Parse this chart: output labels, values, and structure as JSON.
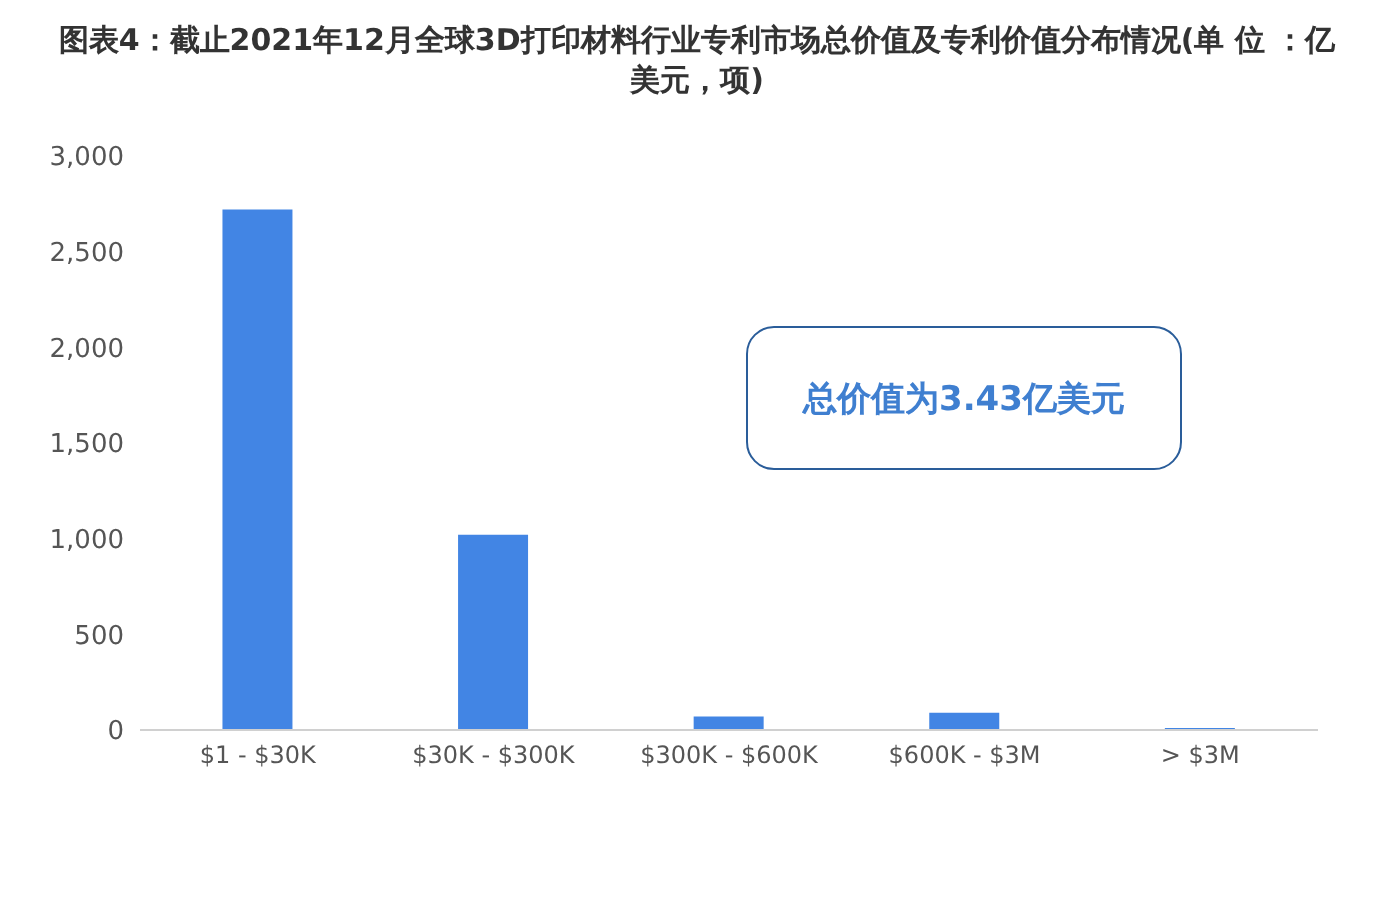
{
  "chart_data": {
    "type": "bar",
    "title": "图表4：截止2021年12月全球3D打印材料行业专利市场总价值及专利价值分布情况(单 位 ：亿美元，项)",
    "categories": [
      "$1 - $30K",
      "$30K - $300K",
      "$300K - $600K",
      "$600K - $3M",
      "> $3M"
    ],
    "values": [
      2720,
      1020,
      70,
      90,
      10
    ],
    "color": "#4285e4",
    "ylim": [
      0,
      3000
    ],
    "yticks": [
      0,
      500,
      {
        "value": 1000,
        "label": "1,000"
      },
      {
        "value": 1500,
        "label": "1,500"
      },
      {
        "value": 2000,
        "label": "2,000"
      },
      {
        "value": 2500,
        "label": "2,500"
      },
      {
        "value": 3000,
        "label": "3,000"
      }
    ],
    "grid": false,
    "annotations": [
      "总价值为3.43亿美元"
    ]
  }
}
